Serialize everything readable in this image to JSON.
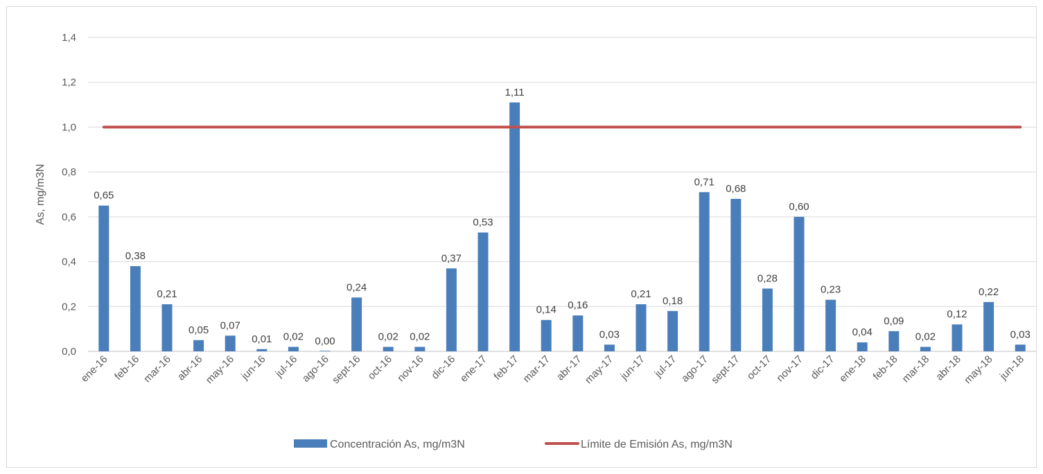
{
  "chart_data": {
    "type": "bar",
    "title": "",
    "xlabel": "",
    "ylabel": "As, mg/m3N",
    "ylim": [
      0,
      1.4
    ],
    "yticks": [
      "0,0",
      "0,2",
      "0,4",
      "0,6",
      "0,8",
      "1,0",
      "1,2",
      "1,4"
    ],
    "yticks_values": [
      0,
      0.2,
      0.4,
      0.6,
      0.8,
      1.0,
      1.2,
      1.4
    ],
    "grid": true,
    "legend_position": "bottom",
    "categories": [
      "ene-16",
      "feb-16",
      "mar-16",
      "abr-16",
      "may-16",
      "jun-16",
      "jul-16",
      "ago-16",
      "sept-16",
      "oct-16",
      "nov-16",
      "dic-16",
      "ene-17",
      "feb-17",
      "mar-17",
      "abr-17",
      "may-17",
      "jun-17",
      "jul-17",
      "ago-17",
      "sept-17",
      "oct-17",
      "nov-17",
      "dic-17",
      "ene-18",
      "feb-18",
      "mar-18",
      "abr-18",
      "may-18",
      "jun-18"
    ],
    "series": [
      {
        "name": "Concentración As, mg/m3N",
        "type": "bar",
        "color": "#4a7ebb",
        "values": [
          0.65,
          0.38,
          0.21,
          0.05,
          0.07,
          0.01,
          0.02,
          0.0,
          0.24,
          0.02,
          0.02,
          0.37,
          0.53,
          1.11,
          0.14,
          0.16,
          0.03,
          0.21,
          0.18,
          0.71,
          0.68,
          0.28,
          0.6,
          0.23,
          0.04,
          0.09,
          0.02,
          0.12,
          0.22,
          0.03
        ],
        "labels": [
          "0,65",
          "0,38",
          "0,21",
          "0,05",
          "0,07",
          "0,01",
          "0,02",
          "0,00",
          "0,24",
          "0,02",
          "0,02",
          "0,37",
          "0,53",
          "1,11",
          "0,14",
          "0,16",
          "0,03",
          "0,21",
          "0,18",
          "0,71",
          "0,68",
          "0,28",
          "0,60",
          "0,23",
          "0,04",
          "0,09",
          "0,02",
          "0,12",
          "0,22",
          "0,03"
        ]
      },
      {
        "name": "Límite de Emisión As, mg/m3N",
        "type": "line",
        "color": "#c0504d",
        "values": [
          1.0,
          1.0,
          1.0,
          1.0,
          1.0,
          1.0,
          1.0,
          1.0,
          1.0,
          1.0,
          1.0,
          1.0,
          1.0,
          1.0,
          1.0,
          1.0,
          1.0,
          1.0,
          1.0,
          1.0,
          1.0,
          1.0,
          1.0,
          1.0,
          1.0,
          1.0,
          1.0,
          1.0,
          1.0,
          1.0
        ]
      }
    ]
  }
}
